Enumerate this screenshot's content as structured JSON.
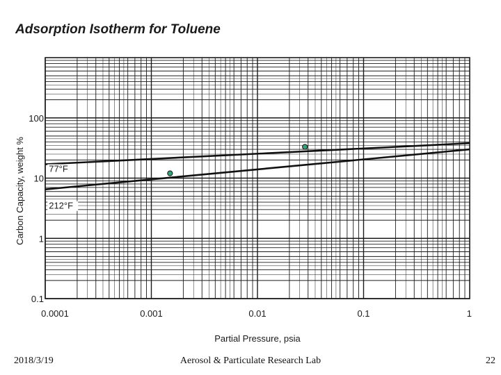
{
  "chart_data": {
    "type": "line",
    "title": "Adsorption Isotherm for Toluene",
    "xlabel": "Partial Pressure, psia",
    "ylabel": "Carbon Capacity, weight %",
    "x_scale": "log",
    "y_scale": "log",
    "xlim": [
      0.0001,
      1
    ],
    "ylim": [
      0.1,
      1000
    ],
    "x_ticks": [
      "0.0001",
      "0.001",
      "0.01",
      "0.1",
      "1"
    ],
    "x_tick_values": [
      0.0001,
      0.001,
      0.01,
      0.1,
      1
    ],
    "y_ticks": [
      "100",
      "10",
      "1",
      "0.1"
    ],
    "y_tick_values": [
      100,
      10,
      1,
      0.1
    ],
    "grid": true,
    "series": [
      {
        "name": "77°F",
        "x": [
          0.0001,
          1
        ],
        "y": [
          17,
          38
        ]
      },
      {
        "name": "212°F",
        "x": [
          0.0001,
          1
        ],
        "y": [
          6.5,
          30
        ]
      }
    ],
    "points": [
      {
        "series": "77°F",
        "x": 0.028,
        "y": 33
      },
      {
        "series": "212°F",
        "x": 0.0015,
        "y": 12
      }
    ],
    "colors": {
      "grid": "#1a1a1a",
      "line": "#111111",
      "marker": "#3aa07a"
    }
  },
  "footer": {
    "date": "2018/3/19",
    "lab": "Aerosol & Particulate Research Lab",
    "page": "22"
  }
}
